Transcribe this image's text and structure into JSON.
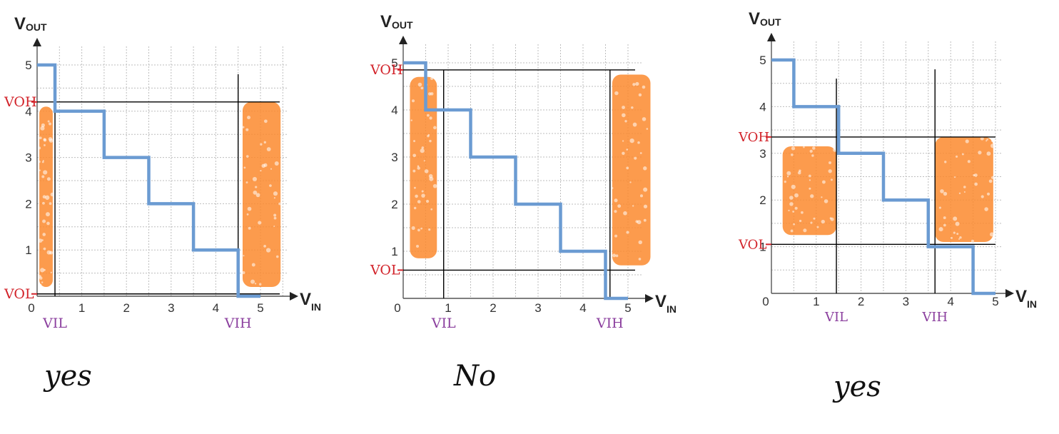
{
  "colors": {
    "staircase": "#6b9bd2",
    "region": "#fb8a2e",
    "threshold_line": "#000000",
    "grid": "#bdbdbd",
    "voltage_label": "#d2232a",
    "input_label": "#8b3f9e"
  },
  "chart_data": [
    {
      "type": "line",
      "axis_title_y": "V",
      "axis_title_y_sub": "OUT",
      "axis_title_x": "V",
      "axis_title_x_sub": "IN",
      "xlim": [
        0,
        5
      ],
      "ylim": [
        0,
        5
      ],
      "x_ticks": [
        "0",
        "1",
        "2",
        "3",
        "4",
        "5"
      ],
      "y_ticks": [
        "1",
        "2",
        "3",
        "4",
        "5"
      ],
      "grid": true,
      "series": [
        {
          "x": [
            0,
            0.4,
            0.4,
            1.5,
            1.5,
            2.5,
            2.5,
            3.5,
            3.5,
            4.5,
            4.5,
            5
          ],
          "y": [
            5,
            5,
            4,
            4,
            3,
            3,
            2,
            2,
            1,
            1,
            0,
            0
          ]
        }
      ],
      "thresholds": {
        "VIL": 0.4,
        "VIH": 4.5,
        "VOH": 4.2,
        "VOL": 0.05
      },
      "threshold_labels": {
        "VOH": "VOH",
        "VOL": "VOL",
        "VIL": "VIL",
        "VIH": "VIH"
      },
      "regions": [
        {
          "x": [
            0.05,
            0.35
          ],
          "y": [
            0.2,
            4.1
          ]
        },
        {
          "x": [
            4.6,
            5.45
          ],
          "y": [
            0.2,
            4.2
          ]
        }
      ],
      "verdict": "yes"
    },
    {
      "type": "line",
      "axis_title_y": "V",
      "axis_title_y_sub": "OUT",
      "axis_title_x": "V",
      "axis_title_x_sub": "IN",
      "xlim": [
        0,
        5
      ],
      "ylim": [
        0,
        5
      ],
      "x_ticks": [
        "0",
        "1",
        "2",
        "3",
        "4",
        "5"
      ],
      "y_ticks": [
        "1",
        "2",
        "3",
        "4",
        "5"
      ],
      "grid": true,
      "series": [
        {
          "x": [
            0,
            0.5,
            0.5,
            1.5,
            1.5,
            2.5,
            2.5,
            3.5,
            3.5,
            4.5,
            4.5,
            5
          ],
          "y": [
            5,
            5,
            4,
            4,
            3,
            3,
            2,
            2,
            1,
            1,
            0,
            0
          ]
        }
      ],
      "thresholds": {
        "VIL": 0.9,
        "VIH": 4.6,
        "VOH": 4.85,
        "VOL": 0.6
      },
      "threshold_labels": {
        "VOH": "VOH",
        "VOL": "VOL",
        "VIL": "VIL",
        "VIH": "VIH"
      },
      "regions": [
        {
          "x": [
            0.15,
            0.75
          ],
          "y": [
            0.85,
            4.7
          ]
        },
        {
          "x": [
            4.65,
            5.5
          ],
          "y": [
            0.7,
            4.75
          ]
        }
      ],
      "verdict": "No"
    },
    {
      "type": "line",
      "axis_title_y": "V",
      "axis_title_y_sub": "OUT",
      "axis_title_x": "V",
      "axis_title_x_sub": "IN",
      "xlim": [
        0,
        5
      ],
      "ylim": [
        0,
        5
      ],
      "x_ticks": [
        "0",
        "1",
        "2",
        "3",
        "4",
        "5"
      ],
      "y_ticks": [
        "1",
        "2",
        "3",
        "4",
        "5"
      ],
      "grid": true,
      "series": [
        {
          "x": [
            0,
            0.5,
            0.5,
            1.5,
            1.5,
            2.5,
            2.5,
            3.5,
            3.5,
            4.5,
            4.5,
            5
          ],
          "y": [
            5,
            5,
            4,
            4,
            3,
            3,
            2,
            2,
            1,
            1,
            0,
            0
          ]
        }
      ],
      "thresholds": {
        "VIL": 1.45,
        "VIH": 3.65,
        "VOH": 3.35,
        "VOL": 1.05
      },
      "threshold_labels": {
        "VOH": "VOH",
        "VOL": "VOL",
        "VIL": "VIL",
        "VIH": "VIH"
      },
      "regions": [
        {
          "x": [
            0.25,
            1.45
          ],
          "y": [
            1.25,
            3.15
          ]
        },
        {
          "x": [
            3.65,
            4.95
          ],
          "y": [
            1.1,
            3.35
          ]
        }
      ],
      "verdict": "yes"
    }
  ]
}
